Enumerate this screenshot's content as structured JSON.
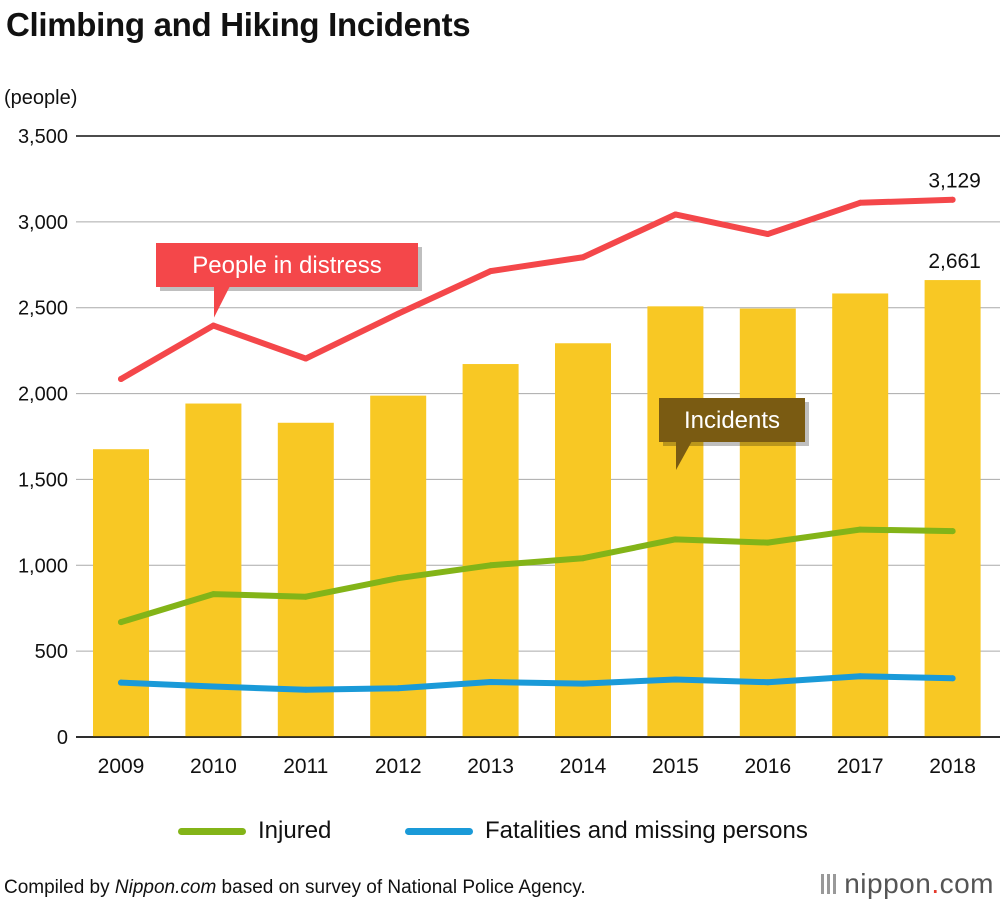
{
  "title": "Climbing and Hiking Incidents",
  "chart_data": {
    "type": "bar+line",
    "unit_label": "(people)",
    "categories": [
      "2009",
      "2010",
      "2011",
      "2012",
      "2013",
      "2014",
      "2015",
      "2016",
      "2017",
      "2018"
    ],
    "ylim": [
      0,
      3500
    ],
    "yticks": [
      0,
      500,
      1000,
      1500,
      2000,
      2500,
      3000,
      3500
    ],
    "ytick_labels": [
      "0",
      "500",
      "1,000",
      "1,500",
      "2,000",
      "2,500",
      "3,000",
      "3,500"
    ],
    "series": [
      {
        "name": "Incidents",
        "kind": "bar",
        "color": "#f8c824",
        "values": [
          1676,
          1942,
          1830,
          1988,
          2172,
          2293,
          2508,
          2495,
          2583,
          2661
        ]
      },
      {
        "name": "People in distress",
        "kind": "line",
        "color": "#f4474a",
        "values": [
          2085,
          2396,
          2204,
          2465,
          2713,
          2794,
          3043,
          2929,
          3111,
          3129
        ]
      },
      {
        "name": "Injured",
        "kind": "line",
        "color": "#83b418",
        "values": [
          669,
          832,
          817,
          925,
          1000,
          1041,
          1151,
          1132,
          1208,
          1199
        ]
      },
      {
        "name": "Fatalities and missing persons",
        "kind": "line",
        "color": "#1a9ad8",
        "values": [
          317,
          294,
          275,
          284,
          320,
          311,
          335,
          319,
          354,
          342
        ]
      }
    ],
    "data_labels": [
      {
        "series": "People in distress",
        "category": "2018",
        "text": "3,129"
      },
      {
        "series": "Incidents",
        "category": "2018",
        "text": "2,661"
      }
    ],
    "callouts": [
      {
        "series": "People in distress",
        "text": "People in distress",
        "color": "#f4474a"
      },
      {
        "series": "Incidents",
        "text": "Incidents",
        "color": "#7a5b12"
      }
    ],
    "legend": [
      {
        "name": "Injured",
        "color": "#83b418"
      },
      {
        "name": "Fatalities and missing persons",
        "color": "#1a9ad8"
      }
    ]
  },
  "footer": {
    "prefix": "Compiled by ",
    "source_name": "Nippon.com",
    "suffix": " based on survey of National Police Agency.",
    "brand": "nippon",
    "brand_dot": ".",
    "brand_tld": "com"
  }
}
